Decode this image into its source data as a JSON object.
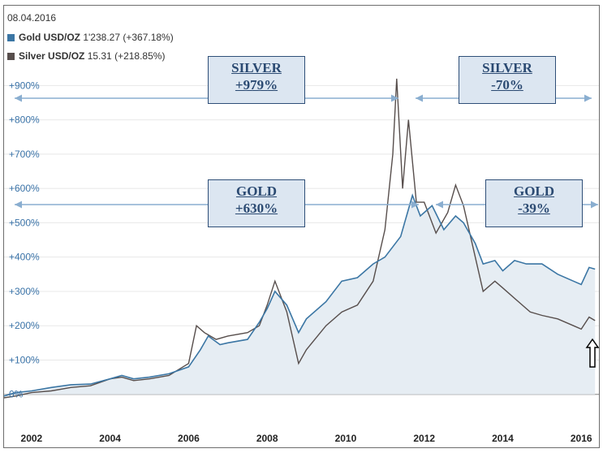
{
  "date": "08.04.2016",
  "legend": [
    {
      "name": "Gold USD/OZ",
      "value": "1'238.27 (+367.18%)",
      "color": "#3b76a4"
    },
    {
      "name": "Silver USD/OZ",
      "value": "15.31 (+218.85%)",
      "color": "#574e4c"
    }
  ],
  "annotations": {
    "silver_up": {
      "line1": "SILVER",
      "line2": "+979%"
    },
    "silver_down": {
      "line1": "SILVER",
      "line2": "-70%"
    },
    "gold_up": {
      "line1": "GOLD",
      "line2": "+630%"
    },
    "gold_down": {
      "line1": "GOLD",
      "line2": "-39%"
    }
  },
  "colors": {
    "gold": "#3b76a4",
    "silver": "#574e4c",
    "area": "#e6edf3",
    "arrow": "#8aaed0",
    "box_fill": "#dce6f1",
    "box_border": "#2f4f78"
  },
  "chart_data": {
    "type": "line",
    "y_tick_labels": [
      "0%",
      "+100%",
      "+200%",
      "+300%",
      "+400%",
      "+500%",
      "+600%",
      "+700%",
      "+800%",
      "+900%"
    ],
    "x_tick_labels": [
      "2002",
      "2004",
      "2006",
      "2008",
      "2010",
      "2012",
      "2014",
      "2016"
    ],
    "x_ticks": [
      2002,
      2004,
      2006,
      2008,
      2010,
      2012,
      2014,
      2016
    ],
    "y_ticks": [
      0,
      100,
      200,
      300,
      400,
      500,
      600,
      700,
      800,
      900
    ],
    "xlim": [
      2001.3,
      2016.45
    ],
    "ylim": [
      -100,
      960
    ],
    "grid": true,
    "series": [
      {
        "name": "Gold USD/OZ",
        "points": [
          [
            2001.3,
            -5
          ],
          [
            2001.6,
            5
          ],
          [
            2002.0,
            10
          ],
          [
            2002.5,
            20
          ],
          [
            2003.0,
            28
          ],
          [
            2003.5,
            30
          ],
          [
            2004.0,
            45
          ],
          [
            2004.3,
            55
          ],
          [
            2004.6,
            45
          ],
          [
            2005.0,
            50
          ],
          [
            2005.5,
            60
          ],
          [
            2006.0,
            80
          ],
          [
            2006.3,
            130
          ],
          [
            2006.5,
            170
          ],
          [
            2006.8,
            145
          ],
          [
            2007.0,
            150
          ],
          [
            2007.5,
            160
          ],
          [
            2007.8,
            210
          ],
          [
            2008.0,
            250
          ],
          [
            2008.2,
            300
          ],
          [
            2008.5,
            260
          ],
          [
            2008.8,
            180
          ],
          [
            2009.0,
            220
          ],
          [
            2009.5,
            270
          ],
          [
            2009.9,
            330
          ],
          [
            2010.3,
            340
          ],
          [
            2010.7,
            380
          ],
          [
            2011.0,
            400
          ],
          [
            2011.4,
            460
          ],
          [
            2011.7,
            580
          ],
          [
            2011.9,
            520
          ],
          [
            2012.2,
            550
          ],
          [
            2012.5,
            480
          ],
          [
            2012.8,
            520
          ],
          [
            2013.0,
            500
          ],
          [
            2013.3,
            440
          ],
          [
            2013.5,
            380
          ],
          [
            2013.8,
            390
          ],
          [
            2014.0,
            360
          ],
          [
            2014.3,
            390
          ],
          [
            2014.6,
            380
          ],
          [
            2015.0,
            380
          ],
          [
            2015.4,
            350
          ],
          [
            2015.8,
            330
          ],
          [
            2016.0,
            320
          ],
          [
            2016.2,
            370
          ],
          [
            2016.35,
            365
          ]
        ]
      },
      {
        "name": "Silver USD/OZ",
        "points": [
          [
            2001.3,
            -10
          ],
          [
            2001.6,
            -5
          ],
          [
            2002.0,
            5
          ],
          [
            2002.5,
            10
          ],
          [
            2003.0,
            20
          ],
          [
            2003.5,
            25
          ],
          [
            2004.0,
            45
          ],
          [
            2004.3,
            50
          ],
          [
            2004.6,
            40
          ],
          [
            2005.0,
            45
          ],
          [
            2005.5,
            55
          ],
          [
            2006.0,
            90
          ],
          [
            2006.2,
            200
          ],
          [
            2006.4,
            180
          ],
          [
            2006.7,
            160
          ],
          [
            2007.0,
            170
          ],
          [
            2007.5,
            180
          ],
          [
            2007.8,
            200
          ],
          [
            2008.0,
            260
          ],
          [
            2008.2,
            330
          ],
          [
            2008.5,
            240
          ],
          [
            2008.8,
            90
          ],
          [
            2009.0,
            130
          ],
          [
            2009.5,
            200
          ],
          [
            2009.9,
            240
          ],
          [
            2010.3,
            260
          ],
          [
            2010.7,
            330
          ],
          [
            2011.0,
            480
          ],
          [
            2011.2,
            700
          ],
          [
            2011.3,
            920
          ],
          [
            2011.45,
            600
          ],
          [
            2011.6,
            800
          ],
          [
            2011.8,
            560
          ],
          [
            2012.0,
            560
          ],
          [
            2012.3,
            470
          ],
          [
            2012.6,
            530
          ],
          [
            2012.8,
            610
          ],
          [
            2013.0,
            550
          ],
          [
            2013.3,
            400
          ],
          [
            2013.5,
            300
          ],
          [
            2013.8,
            330
          ],
          [
            2014.0,
            310
          ],
          [
            2014.4,
            270
          ],
          [
            2014.7,
            240
          ],
          [
            2015.0,
            230
          ],
          [
            2015.4,
            220
          ],
          [
            2015.8,
            200
          ],
          [
            2016.0,
            190
          ],
          [
            2016.2,
            225
          ],
          [
            2016.35,
            215
          ]
        ]
      }
    ]
  }
}
